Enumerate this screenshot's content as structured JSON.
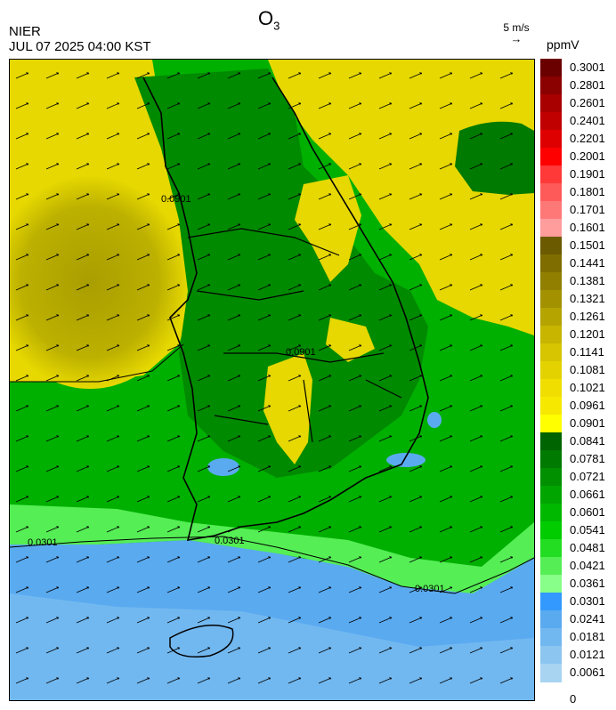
{
  "header": {
    "title_main": "O",
    "title_sub": "3",
    "org": "NIER",
    "datetime": "JUL 07 2025 04:00 KST",
    "wind_ref_label": "5 m/s",
    "unit": "ppmV"
  },
  "map": {
    "contour_labels": [
      "0.0301",
      "0.0901"
    ],
    "wind_direction": "northeast"
  },
  "legend": {
    "labels": [
      "0.3001",
      "0.2801",
      "0.2601",
      "0.2401",
      "0.2201",
      "0.2001",
      "0.1901",
      "0.1801",
      "0.1701",
      "0.1601",
      "0.1501",
      "0.1441",
      "0.1381",
      "0.1321",
      "0.1261",
      "0.1201",
      "0.1141",
      "0.1081",
      "0.1021",
      "0.0961",
      "0.0901",
      "0.0841",
      "0.0781",
      "0.0721",
      "0.0661",
      "0.0601",
      "0.0541",
      "0.0481",
      "0.0421",
      "0.0361",
      "0.0301",
      "0.0241",
      "0.0181",
      "0.0121",
      "0.0061",
      "0"
    ],
    "colors": [
      "#6b0000",
      "#8b0000",
      "#a80000",
      "#c00000",
      "#de0000",
      "#ff0000",
      "#ff3838",
      "#ff5a5a",
      "#ff7878",
      "#ff9c9c",
      "#6b5a00",
      "#7f6d00",
      "#917f00",
      "#a39100",
      "#b5a300",
      "#c7b500",
      "#d6c500",
      "#e3d200",
      "#efde00",
      "#f7e800",
      "#ffff00",
      "#006400",
      "#007a00",
      "#009000",
      "#00a500",
      "#00b800",
      "#00cc00",
      "#22dd22",
      "#55ee55",
      "#88ff88",
      "#3399ff",
      "#5aaaf0",
      "#72b8f0",
      "#8cc6f0",
      "#a8d4f2"
    ]
  }
}
